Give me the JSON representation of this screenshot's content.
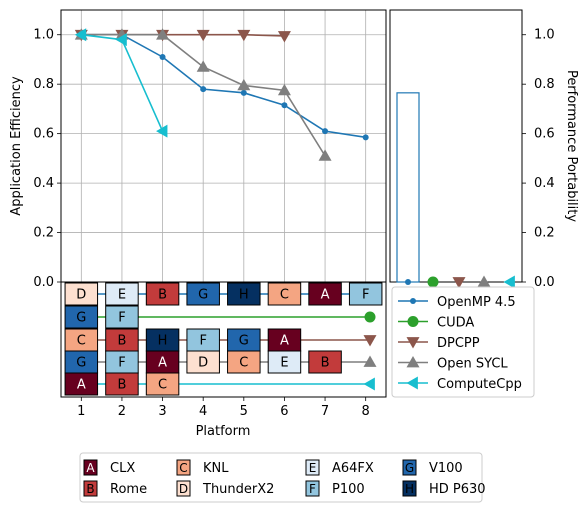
{
  "chart_data": [
    {
      "id": "app-efficiency",
      "type": "line",
      "ylabel": "Application Efficiency",
      "ylim": [
        0,
        1.1
      ],
      "xlim": [
        0.5,
        8.5
      ],
      "yticks": [
        "0.0",
        "0.2",
        "0.4",
        "0.6",
        "0.8",
        "1.0"
      ],
      "grid": true,
      "series": [
        {
          "name": "OpenMP 4.5",
          "color": "#1f77b4",
          "marker": "circle",
          "x": [
            1,
            2,
            3,
            4,
            5,
            6,
            7,
            8
          ],
          "values": [
            1.0,
            1.0,
            0.91,
            0.78,
            0.765,
            0.715,
            0.61,
            0.585
          ]
        },
        {
          "name": "CUDA",
          "color": "#2ca02c",
          "marker": "circle-large",
          "x": [],
          "values": []
        },
        {
          "name": "DPCPP",
          "color": "#8c564b",
          "marker": "triangle-down",
          "x": [
            1,
            2,
            3,
            4,
            5,
            6
          ],
          "values": [
            1.0,
            1.0,
            1.0,
            1.0,
            1.0,
            0.995
          ]
        },
        {
          "name": "Open SYCL",
          "color": "#7f7f7f",
          "marker": "triangle-up",
          "x": [
            1,
            2,
            3,
            4,
            5,
            6,
            7
          ],
          "values": [
            1.0,
            1.0,
            1.0,
            0.87,
            0.795,
            0.775,
            0.51
          ]
        },
        {
          "name": "ComputeCpp",
          "color": "#17becf",
          "marker": "triangle-left",
          "x": [
            1,
            2,
            3
          ],
          "values": [
            1.0,
            0.98,
            0.61
          ]
        }
      ]
    },
    {
      "id": "performance-portability",
      "type": "bar",
      "ylabel": "Performance Portability",
      "ylim": [
        0,
        1.1
      ],
      "yticks": [
        "0.0",
        "0.2",
        "0.4",
        "0.6",
        "0.8",
        "1.0"
      ],
      "grid": false,
      "series": [
        {
          "name": "OpenMP 4.5",
          "value": 0.765
        },
        {
          "name": "CUDA",
          "value": 0
        },
        {
          "name": "DPCPP",
          "value": 0
        },
        {
          "name": "Open SYCL",
          "value": 0
        },
        {
          "name": "ComputeCpp",
          "value": 0
        }
      ]
    },
    {
      "id": "platform-strip",
      "type": "table",
      "xlabel": "Platform",
      "xticks": [
        "1",
        "2",
        "3",
        "4",
        "5",
        "6",
        "7",
        "8"
      ],
      "rows": [
        {
          "series": "OpenMP 4.5",
          "cells": [
            "D",
            "E",
            "B",
            "G",
            "H",
            "C",
            "A",
            "F"
          ]
        },
        {
          "series": "CUDA",
          "cells": [
            "G",
            "F"
          ]
        },
        {
          "series": "DPCPP",
          "cells": [
            "C",
            "B",
            "H",
            "F",
            "G",
            "A"
          ]
        },
        {
          "series": "Open SYCL",
          "cells": [
            "G",
            "F",
            "A",
            "D",
            "C",
            "E",
            "B"
          ]
        },
        {
          "series": "ComputeCpp",
          "cells": [
            "A",
            "B",
            "C"
          ]
        }
      ]
    }
  ],
  "platform_key": [
    {
      "letter": "A",
      "name": "CLX",
      "color": "#67001f",
      "text_color": "#ffffff"
    },
    {
      "letter": "B",
      "name": "Rome",
      "color": "#c23b3b",
      "text_color": "#000000"
    },
    {
      "letter": "C",
      "name": "KNL",
      "color": "#f4a582",
      "text_color": "#000000"
    },
    {
      "letter": "D",
      "name": "ThunderX2",
      "color": "#fde0d0",
      "text_color": "#000000"
    },
    {
      "letter": "E",
      "name": "A64FX",
      "color": "#deebf7",
      "text_color": "#000000"
    },
    {
      "letter": "F",
      "name": "P100",
      "color": "#92c5de",
      "text_color": "#000000"
    },
    {
      "letter": "G",
      "name": "V100",
      "color": "#2166ac",
      "text_color": "#000000"
    },
    {
      "letter": "H",
      "name": "HD P630",
      "color": "#053061",
      "text_color": "#000000"
    }
  ]
}
